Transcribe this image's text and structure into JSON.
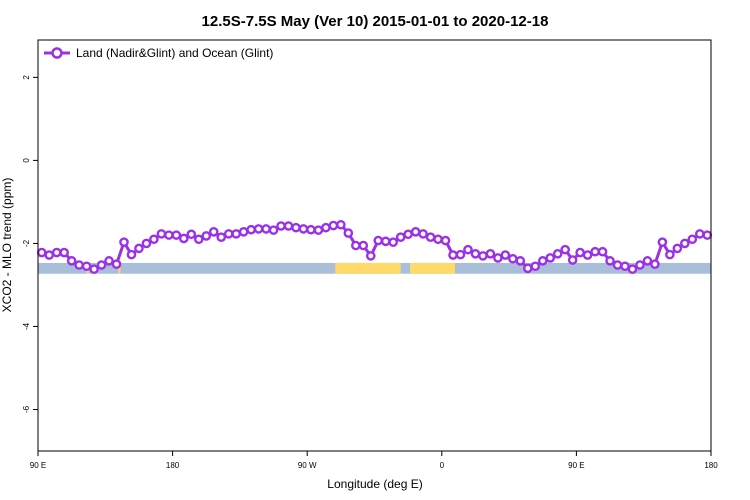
{
  "chart_data": {
    "type": "line",
    "title": "12.5S-7.5S May (Ver 10)   2015-01-01 to 2020-12-18",
    "xlabel": "Longitude (deg E)",
    "ylabel": "XCO2 - MLO trend (ppm)",
    "xlim": [
      90,
      450
    ],
    "ylim": [
      -7.0,
      2.9
    ],
    "x_ticks": [
      {
        "value": 90,
        "label": "90 E"
      },
      {
        "value": 162,
        "label": "180"
      },
      {
        "value": 234,
        "label": "90 W"
      },
      {
        "value": 306,
        "label": "0"
      },
      {
        "value": 378,
        "label": "90 E"
      },
      {
        "value": 450,
        "label": "180"
      }
    ],
    "y_ticks": [
      {
        "value": 2,
        "label": "2"
      },
      {
        "value": 0,
        "label": "0"
      },
      {
        "value": -2,
        "label": "-2"
      },
      {
        "value": -4,
        "label": "-4"
      },
      {
        "value": -6,
        "label": "-6"
      }
    ],
    "grid": false,
    "legend_position": "top-left",
    "colors": {
      "series": "#9b30e6",
      "ocean": "#a9bfd9",
      "land": "#ffd96a"
    },
    "land_band": {
      "y_range": [
        -2.73,
        -2.47
      ],
      "land_segments": [
        [
          249,
          284
        ],
        [
          289,
          313
        ],
        [
          116,
          116.5
        ],
        [
          133,
          134
        ]
      ]
    },
    "series": [
      {
        "name": "Land (Nadir&Glint) and Ocean (Glint)",
        "x": [
          92,
          96,
          100,
          104,
          108,
          112,
          116,
          120,
          124,
          128,
          132,
          136,
          140,
          144,
          148,
          152,
          156,
          160,
          164,
          168,
          172,
          176,
          180,
          184,
          188,
          192,
          196,
          200,
          204,
          208,
          212,
          216,
          220,
          224,
          228,
          232,
          236,
          240,
          244,
          248,
          252,
          256,
          260,
          264,
          268,
          272,
          276,
          280,
          284,
          288,
          292,
          296,
          300,
          304,
          308,
          312,
          316,
          320,
          324,
          328,
          332,
          336,
          340,
          344,
          348,
          352,
          356,
          360,
          364,
          368,
          372,
          376,
          380,
          384,
          388,
          392,
          396,
          400,
          404,
          408,
          412,
          416,
          420,
          424,
          428,
          432,
          436,
          440,
          444,
          448
        ],
        "y": [
          -2.22,
          -2.28,
          -2.22,
          -2.22,
          -2.42,
          -2.52,
          -2.55,
          -2.62,
          -2.52,
          -2.42,
          -2.5,
          -1.97,
          -2.27,
          -2.12,
          -2.0,
          -1.9,
          -1.77,
          -1.8,
          -1.8,
          -1.88,
          -1.78,
          -1.9,
          -1.82,
          -1.72,
          -1.85,
          -1.77,
          -1.77,
          -1.72,
          -1.67,
          -1.65,
          -1.65,
          -1.68,
          -1.58,
          -1.58,
          -1.62,
          -1.65,
          -1.67,
          -1.68,
          -1.62,
          -1.57,
          -1.55,
          -1.75,
          -2.05,
          -2.05,
          -2.3,
          -1.93,
          -1.95,
          -1.97,
          -1.85,
          -1.78,
          -1.72,
          -1.77,
          -1.85,
          -1.9,
          -1.93,
          -2.28,
          -2.27,
          -2.15,
          -2.25,
          -2.3,
          -2.25,
          -2.35,
          -2.28,
          -2.37,
          -2.42,
          -2.6,
          -2.55,
          -2.42,
          -2.35,
          -2.25,
          -2.15,
          -2.4,
          -2.22,
          -2.28,
          -2.2,
          -2.2,
          -2.42,
          -2.52,
          -2.55,
          -2.62,
          -2.52,
          -2.42,
          -2.5,
          -1.97,
          -2.27,
          -2.12,
          -2.0,
          -1.9,
          -1.77,
          -1.8
        ]
      }
    ]
  }
}
